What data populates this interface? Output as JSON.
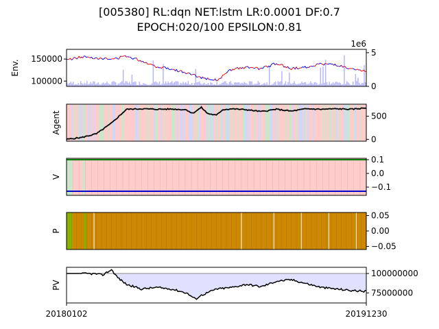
{
  "title_line1": "[005380] RL:dqn NET:lstm LR:0.0001 DF:0.7",
  "title_line2": "EPOCH:020/100 EPSILON:0.81",
  "x_start_label": "20180102",
  "x_end_label": "20191230",
  "colors": {
    "price_up": "#ff0000",
    "price_down": "#0000ff",
    "volume": "#b3b3ff",
    "buy_bg": "#ffcccc",
    "sell_bg": "#ccd9ff",
    "hold_bg": "#cce6cc",
    "value_buy": "#008000",
    "value_sell": "#0000cc",
    "policy_fill": "#cc8800",
    "policy_green": "#88b000",
    "pv_fill": "#e0e0ff",
    "line": "#000000"
  },
  "chart_data": [
    {
      "type": "line",
      "panel": "env",
      "ylabel": "Env.",
      "ylim": [
        88000,
        172000
      ],
      "yticks": [
        100000,
        150000
      ],
      "secondary_ylim": [
        0,
        5500000
      ],
      "secondary_yticks": [
        0,
        5
      ],
      "secondary_scale_label": "1e6",
      "x_range": [
        "20180102",
        "20191230"
      ],
      "series": [
        {
          "x": [
            0,
            0.05,
            0.1,
            0.15,
            0.2,
            0.25,
            0.3,
            0.35,
            0.4,
            0.45,
            0.5,
            0.55,
            0.6,
            0.65,
            0.7,
            0.75,
            0.8,
            0.85,
            0.9,
            0.95,
            1.0
          ],
          "values": [
            148000,
            155000,
            153000,
            149000,
            157000,
            146000,
            133000,
            128000,
            118000,
            108000,
            102000,
            126000,
            131000,
            128000,
            140000,
            128000,
            132000,
            139000,
            137000,
            126000,
            122000
          ]
        }
      ],
      "volume_note": "volume bars on secondary axis (scale 1e6)"
    },
    {
      "type": "area",
      "panel": "agent",
      "ylabel": "Agent",
      "ylim": [
        -40,
        760
      ],
      "yticks": [
        0,
        500
      ],
      "series": [
        {
          "x": [
            0,
            0.05,
            0.1,
            0.15,
            0.2,
            0.25,
            0.3,
            0.35,
            0.4,
            0.42,
            0.45,
            0.47,
            0.5,
            0.52,
            0.55,
            0.6,
            0.65,
            0.7,
            0.75,
            0.8,
            0.85,
            0.9,
            0.95,
            1.0
          ],
          "values": [
            0,
            40,
            120,
            350,
            650,
            660,
            650,
            655,
            640,
            560,
            690,
            560,
            520,
            640,
            660,
            640,
            600,
            650,
            610,
            660,
            650,
            660,
            650,
            680
          ]
        }
      ],
      "background": "action colors per step (buy / sell / hold)"
    },
    {
      "type": "area",
      "panel": "value",
      "ylabel": "V",
      "ylim": [
        -0.16,
        0.11
      ],
      "yticks": [
        0.1,
        0.0,
        -0.1
      ],
      "ytick_labels": [
        "0.1",
        "0.0",
        "−0.1"
      ],
      "series": [
        {
          "name": "buy",
          "values_constant": 0.1
        },
        {
          "name": "sell",
          "values_constant": -0.13
        }
      ],
      "background": "mostly buy (red) with sparse hold/sell markings near start"
    },
    {
      "type": "area",
      "panel": "policy",
      "ylabel": "P",
      "ylim": [
        -0.06,
        0.06
      ],
      "yticks": [
        0.05,
        0.0,
        -0.05
      ],
      "ytick_labels": [
        "0.05",
        "0.00",
        "−0.05"
      ],
      "background": "policy fill per step; green segments near start, white gaps sparse"
    },
    {
      "type": "line",
      "panel": "pv",
      "ylabel": "PV",
      "ylim": [
        62000000,
        108000000
      ],
      "yticks": [
        75000000,
        100000000
      ],
      "ytick_labels": [
        "75000000",
        "100000000"
      ],
      "baseline": 100000000,
      "series": [
        {
          "x": [
            0,
            0.05,
            0.1,
            0.12,
            0.15,
            0.17,
            0.2,
            0.25,
            0.3,
            0.35,
            0.4,
            0.43,
            0.45,
            0.5,
            0.55,
            0.6,
            0.65,
            0.7,
            0.75,
            0.8,
            0.85,
            0.9,
            0.95,
            1.0
          ],
          "values": [
            100000000,
            100000000,
            99500000,
            98000000,
            105000000,
            95000000,
            86000000,
            80000000,
            82000000,
            80000000,
            75000000,
            67000000,
            72000000,
            80000000,
            82000000,
            86000000,
            83000000,
            90000000,
            92000000,
            87000000,
            82000000,
            80000000,
            78000000,
            77000000
          ]
        }
      ]
    }
  ]
}
